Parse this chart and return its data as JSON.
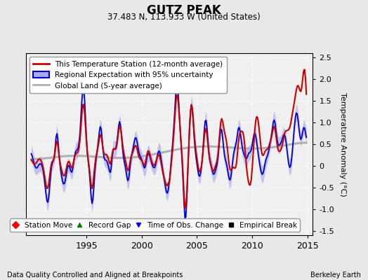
{
  "title": "GUTZ PEAK",
  "subtitle": "37.483 N, 113.933 W (United States)",
  "xlabel_left": "Data Quality Controlled and Aligned at Breakpoints",
  "xlabel_right": "Berkeley Earth",
  "ylabel": "Temperature Anomaly (°C)",
  "xlim": [
    1989.5,
    2015.5
  ],
  "ylim": [
    -1.6,
    2.6
  ],
  "yticks": [
    -1.5,
    -1.0,
    -0.5,
    0.0,
    0.5,
    1.0,
    1.5,
    2.0,
    2.5
  ],
  "xticks": [
    1995,
    2000,
    2005,
    2010,
    2015
  ],
  "bg_color": "#e8e8e8",
  "plot_bg_color": "#f0f0f0",
  "station_color": "#cc0000",
  "regional_color": "#0000cc",
  "regional_fill_color": "#aaaaee",
  "global_color": "#b0b0b0",
  "legend_items": [
    {
      "label": "This Temperature Station (12-month average)",
      "color": "#cc0000",
      "lw": 1.8
    },
    {
      "label": "Regional Expectation with 95% uncertainty",
      "color": "#0000cc",
      "lw": 1.8
    },
    {
      "label": "Global Land (5-year average)",
      "color": "#b0b0b0",
      "lw": 1.8
    }
  ],
  "marker_legend": [
    {
      "marker": "D",
      "color": "red",
      "label": "Station Move"
    },
    {
      "marker": "^",
      "color": "green",
      "label": "Record Gap"
    },
    {
      "marker": "v",
      "color": "blue",
      "label": "Time of Obs. Change"
    },
    {
      "marker": "s",
      "color": "black",
      "label": "Empirical Break"
    }
  ]
}
